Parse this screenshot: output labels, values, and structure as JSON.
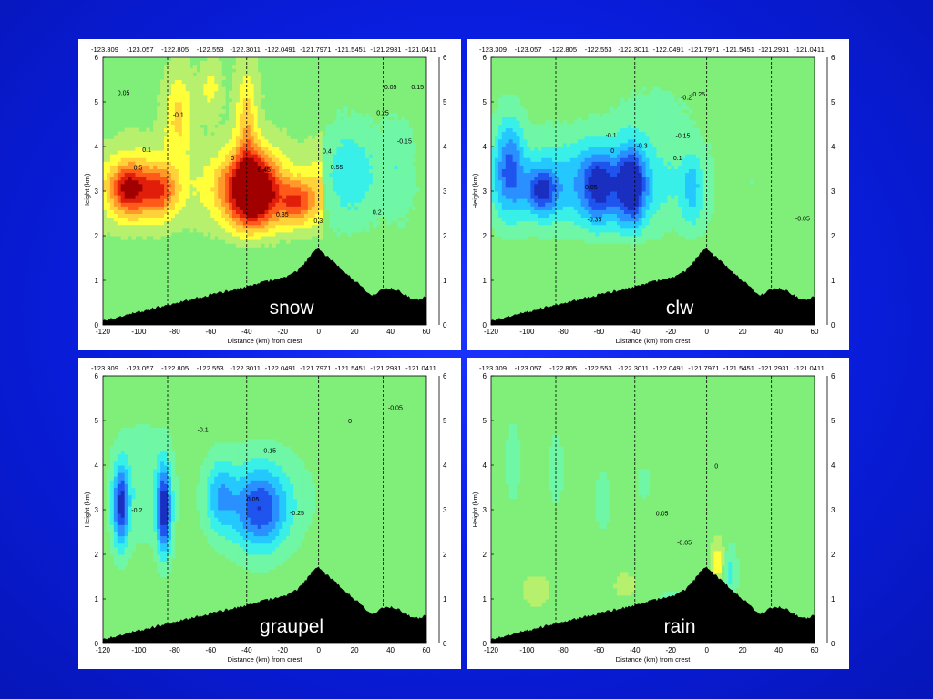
{
  "chart_data": [
    {
      "type": "heatmap",
      "name": "snow",
      "xlabel": "Distance (km) from crest",
      "ylabel": "Height (km)",
      "xlim": [
        -120,
        60
      ],
      "ylim": [
        0,
        6
      ],
      "xticks": [
        -120,
        -100,
        -80,
        -60,
        -40,
        -20,
        0,
        20,
        40,
        60
      ],
      "yticks": [
        0,
        1,
        2,
        3,
        4,
        5,
        6
      ],
      "top_tick_labels": [
        "-123.309",
        "-123.057",
        "-122.805",
        "-122.553",
        "-122.3011",
        "-122.0491",
        "-121.7971",
        "-121.5451",
        "-121.2931",
        "-121.0411"
      ],
      "vertical_dashed_lines_x": [
        -84,
        -40,
        0,
        36
      ],
      "contour_labels": [
        "0.05",
        "0.1",
        "0.15",
        "0.2",
        "0.25",
        "0.3",
        "0.35",
        "0.4",
        "0.45",
        "0.5",
        "0.55",
        "-0.05",
        "-0.1",
        "-0.15",
        "0"
      ]
    },
    {
      "type": "heatmap",
      "name": "clw",
      "xlabel": "Distance (km) from crest",
      "ylabel": "Height (km)",
      "xlim": [
        -120,
        60
      ],
      "ylim": [
        0,
        6
      ],
      "xticks": [
        -120,
        -100,
        -80,
        -60,
        -40,
        -20,
        0,
        20,
        40,
        60
      ],
      "yticks": [
        0,
        1,
        2,
        3,
        4,
        5,
        6
      ],
      "top_tick_labels": [
        "-123.309",
        "-123.057",
        "-122.805",
        "-122.553",
        "-122.3011",
        "-122.0491",
        "-121.7971",
        "-121.5451",
        "-121.2931",
        "-121.0411"
      ],
      "vertical_dashed_lines_x": [
        -84,
        -40,
        0,
        36
      ],
      "contour_labels": [
        "-0.05",
        "-0.1",
        "-0.15",
        "-0.2",
        "-0.25",
        "-0.3",
        "-0.35",
        "0.1",
        "0.05",
        "0"
      ]
    },
    {
      "type": "heatmap",
      "name": "graupel",
      "xlabel": "Distance (km) from crest",
      "ylabel": "Height (km)",
      "xlim": [
        -120,
        60
      ],
      "ylim": [
        0,
        6
      ],
      "xticks": [
        -120,
        -100,
        -80,
        -60,
        -40,
        -20,
        0,
        20,
        40,
        60
      ],
      "yticks": [
        0,
        1,
        2,
        3,
        4,
        5,
        6
      ],
      "top_tick_labels": [
        "-123.309",
        "-123.057",
        "-122.805",
        "-122.553",
        "-122.3011",
        "-122.0491",
        "-121.7971",
        "-121.5451",
        "-121.2931",
        "-121.0411"
      ],
      "vertical_dashed_lines_x": [
        -84,
        -40,
        0,
        36
      ],
      "contour_labels": [
        "-0.05",
        "-0.1",
        "-0.15",
        "-0.2",
        "-0.25",
        "0.05",
        "0"
      ]
    },
    {
      "type": "heatmap",
      "name": "rain",
      "xlabel": "Distance (km) from crest",
      "ylabel": "Height (km)",
      "xlim": [
        -120,
        60
      ],
      "ylim": [
        0,
        6
      ],
      "xticks": [
        -120,
        -100,
        -80,
        -60,
        -40,
        -20,
        0,
        20,
        40,
        60
      ],
      "yticks": [
        0,
        1,
        2,
        3,
        4,
        5,
        6
      ],
      "top_tick_labels": [
        "-123.309",
        "-123.057",
        "-122.805",
        "-122.553",
        "-122.3011",
        "-122.0491",
        "-121.7971",
        "-121.5451",
        "-121.2931",
        "-121.0411"
      ],
      "vertical_dashed_lines_x": [
        -84,
        -40,
        0,
        36
      ],
      "contour_labels": [
        "0.05",
        "-0.05",
        "0"
      ]
    }
  ],
  "colors": {
    "background": "#0a1fe6",
    "panel_bg": "#ffffff",
    "neutral": "#7fef7a",
    "terrain": "#000000",
    "positive_scale": [
      "#b7f06c",
      "#ffff3a",
      "#ffd23a",
      "#ff9a2a",
      "#ff5a1a",
      "#e01e0a",
      "#a00000"
    ],
    "negative_scale": [
      "#6ff7a6",
      "#38f0e8",
      "#24c8ff",
      "#2a90ff",
      "#1f54ee",
      "#1a2ec0"
    ]
  }
}
